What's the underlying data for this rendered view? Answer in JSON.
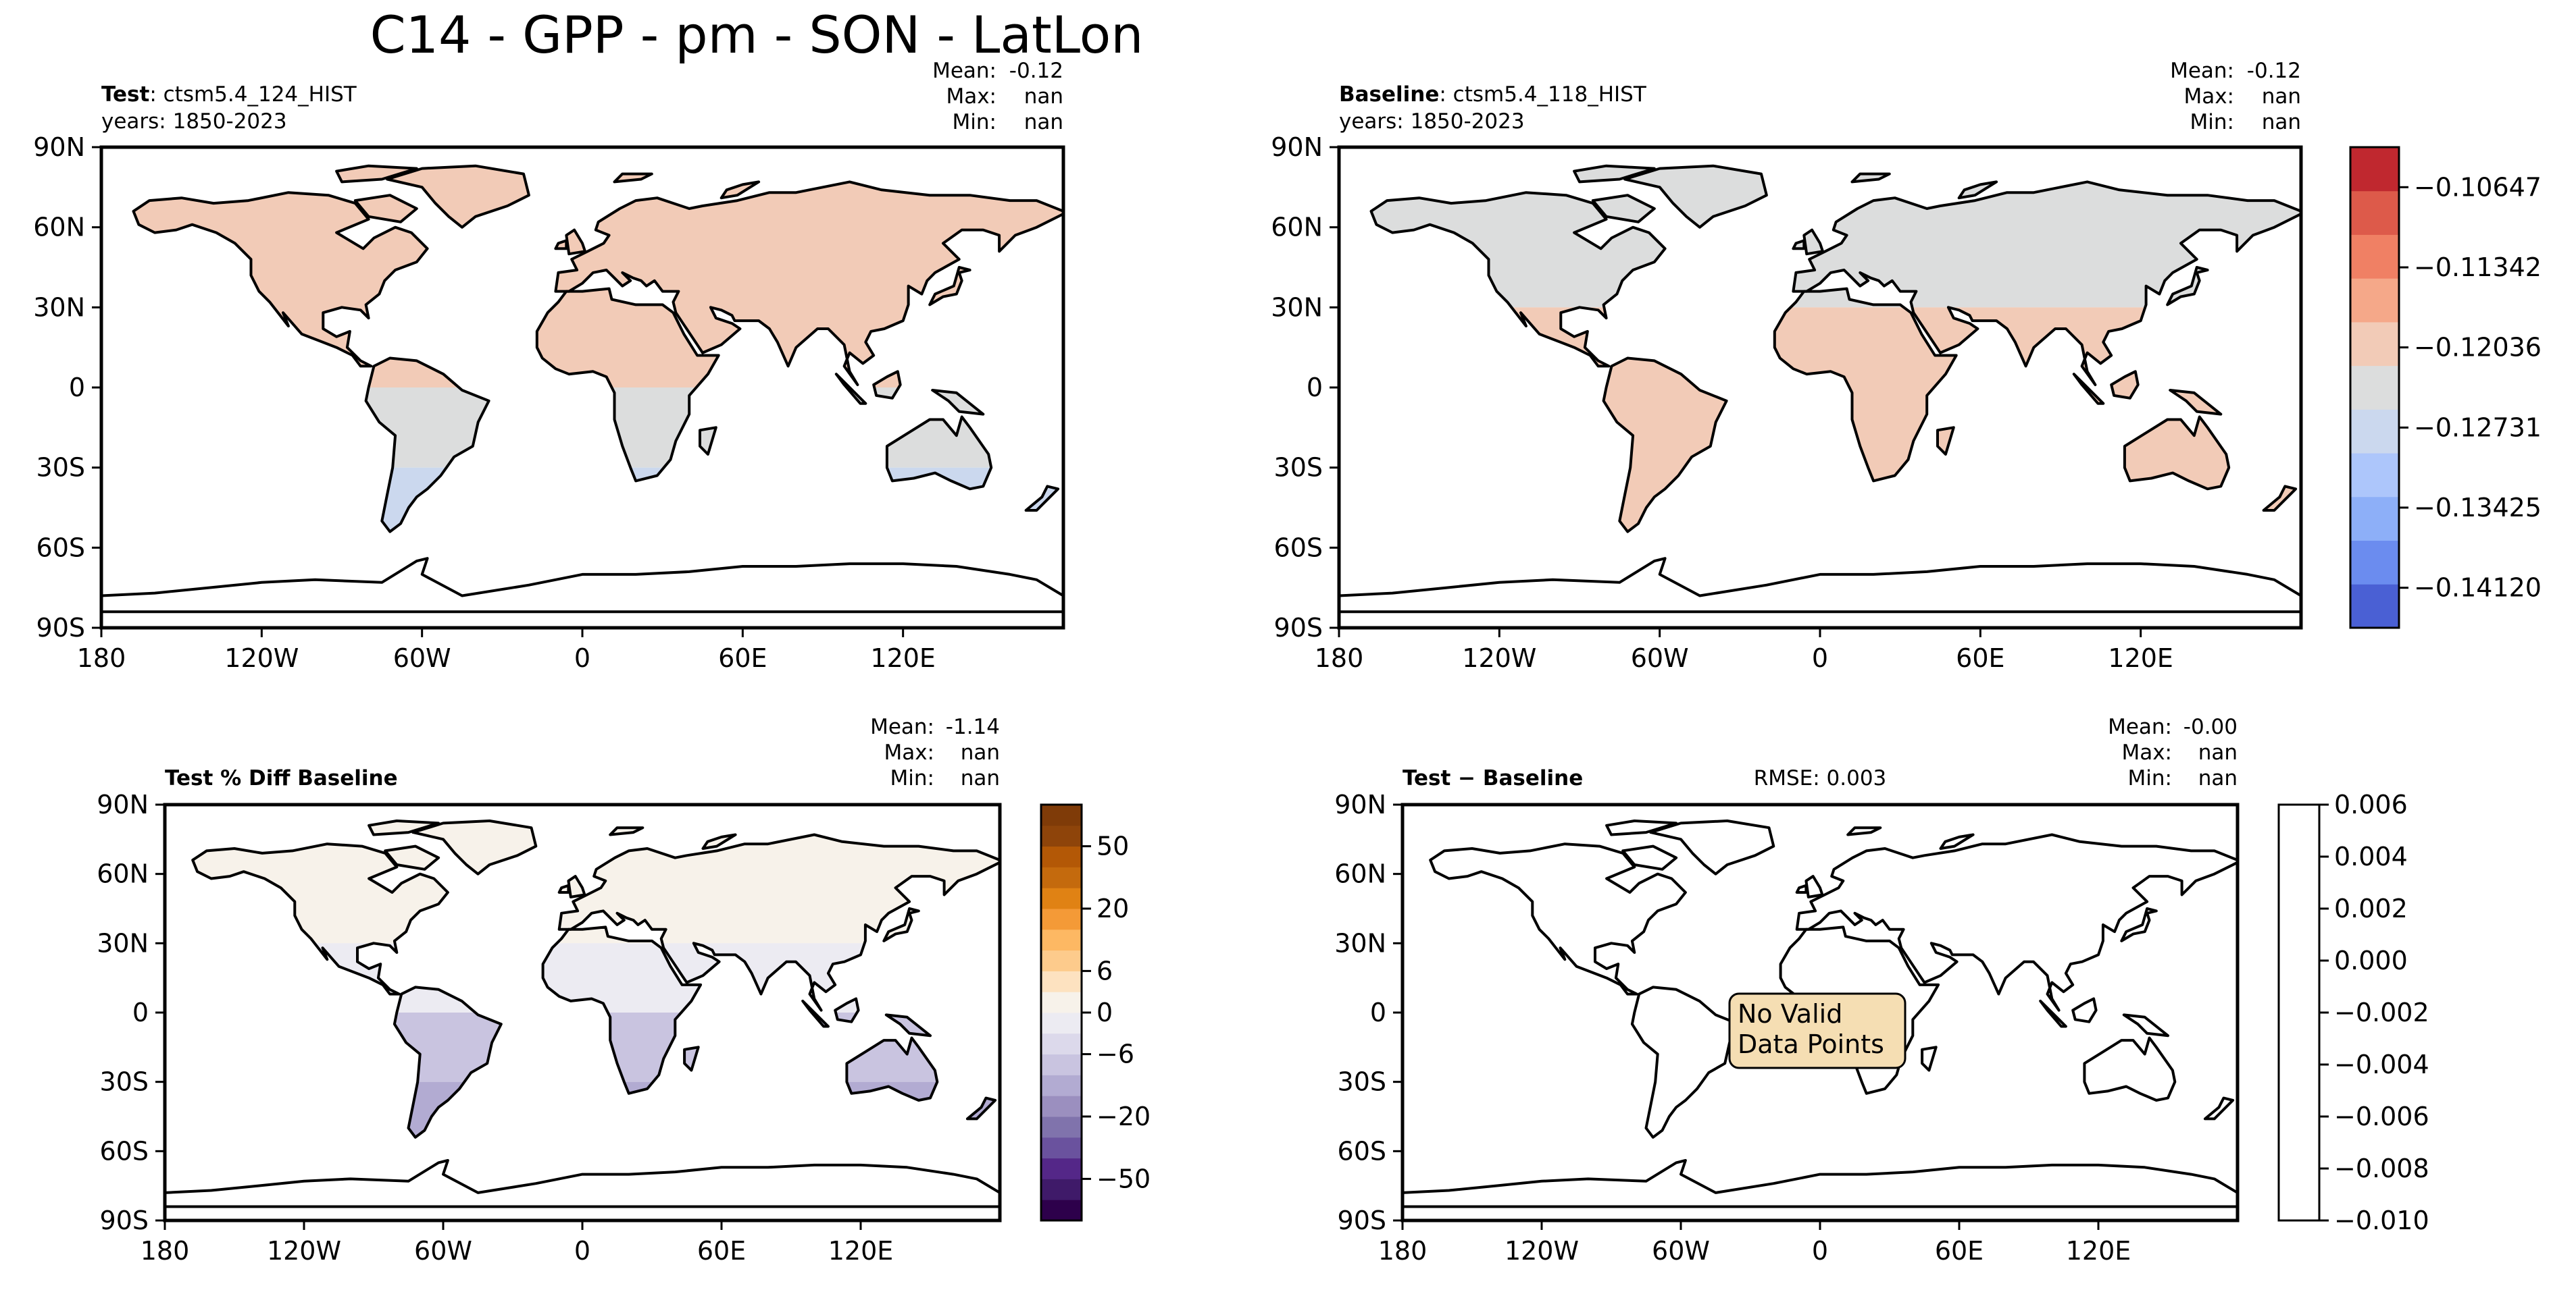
{
  "figure": {
    "suptitle": "C14 - GPP - pm - SON - LatLon"
  },
  "colors": {
    "land_outline": "#000000",
    "no_data_box": "#f5deb3",
    "coolwarm": [
      "#4a60d4",
      "#6b8cef",
      "#8daff8",
      "#adc6fb",
      "#cbd8ee",
      "#dcdddd",
      "#f2cbb7",
      "#f5a889",
      "#f08064",
      "#dd5a4a",
      "#c0282f"
    ],
    "puor": [
      "#2d004b",
      "#3f1a69",
      "#542788",
      "#6a529e",
      "#8073ac",
      "#9b8fbf",
      "#b2abd2",
      "#c9c4e0",
      "#dcd9eb",
      "#ecebf2",
      "#f7f2ea",
      "#fde2c0",
      "#fdcb8c",
      "#fdb863",
      "#f49a37",
      "#e08214",
      "#c46a0d",
      "#b35806",
      "#8e440a",
      "#7f3b08"
    ]
  },
  "panels": {
    "test": {
      "label_bold": "Test",
      "label_rest": ": ctsm5.4_124_HIST",
      "years": "years: 1850-2023",
      "stats": {
        "mean_label": "Mean:",
        "mean": "-0.12",
        "max_label": "Max:",
        "max": "nan",
        "min_label": "Min:",
        "min": "nan"
      }
    },
    "baseline": {
      "label_bold": "Baseline",
      "label_rest": ": ctsm5.4_118_HIST",
      "years": "years: 1850-2023",
      "stats": {
        "mean_label": "Mean:",
        "mean": "-0.12",
        "max_label": "Max:",
        "max": "nan",
        "min_label": "Min:",
        "min": "nan"
      }
    },
    "pctdiff": {
      "label_bold": "Test % Diff Baseline",
      "stats": {
        "mean_label": "Mean:",
        "mean": "-1.14",
        "max_label": "Max:",
        "max": "nan",
        "min_label": "Min:",
        "min": "nan"
      }
    },
    "diff": {
      "label_bold": "Test − Baseline",
      "rmse": "RMSE: 0.003",
      "stats": {
        "mean_label": "Mean:",
        "mean": "-0.00",
        "max_label": "Max:",
        "max": "nan",
        "min_label": "Min:",
        "min": "nan"
      },
      "no_data_lines": [
        "No Valid",
        "Data Points"
      ]
    }
  },
  "chart_data": [
    {
      "type": "heatmap",
      "panel": "test",
      "xlim": [
        -180,
        180
      ],
      "ylim": [
        -90,
        90
      ],
      "xticks": [
        "180",
        "120W",
        "60W",
        "0",
        "60E",
        "120E"
      ],
      "yticks": [
        "90N",
        "60N",
        "30N",
        "0",
        "30S",
        "60S",
        "90S"
      ],
      "bands": [
        {
          "lat": [
            0,
            90
          ],
          "value": -0.1235,
          "color_index": 6
        },
        {
          "lat": [
            -30,
            0
          ],
          "value": -0.1265,
          "color_index": 5
        },
        {
          "lat": [
            -60,
            -30
          ],
          "value": -0.13,
          "color_index": 4
        }
      ]
    },
    {
      "type": "heatmap",
      "panel": "baseline",
      "xlim": [
        -180,
        180
      ],
      "ylim": [
        -90,
        90
      ],
      "xticks": [
        "180",
        "120W",
        "60W",
        "0",
        "60E",
        "120E"
      ],
      "yticks": [
        "90N",
        "60N",
        "30N",
        "0",
        "30S",
        "60S",
        "90S"
      ],
      "bands": [
        {
          "lat": [
            30,
            90
          ],
          "value": -0.1265,
          "color_index": 5
        },
        {
          "lat": [
            -60,
            30
          ],
          "value": -0.1235,
          "color_index": 6
        }
      ]
    },
    {
      "type": "heatmap",
      "panel": "pctdiff",
      "xlim": [
        -180,
        180
      ],
      "ylim": [
        -90,
        90
      ],
      "xticks": [
        "180",
        "120W",
        "60W",
        "0",
        "60E",
        "120E"
      ],
      "yticks": [
        "90N",
        "60N",
        "30N",
        "0",
        "30S",
        "60S",
        "90S"
      ],
      "bands": [
        {
          "lat": [
            30,
            90
          ],
          "value": 1,
          "color_index": 10
        },
        {
          "lat": [
            0,
            30
          ],
          "value": -1,
          "color_index": 9
        },
        {
          "lat": [
            -30,
            0
          ],
          "value": -5,
          "color_index": 7
        },
        {
          "lat": [
            -60,
            -30
          ],
          "value": -9,
          "color_index": 6
        }
      ]
    },
    {
      "type": "heatmap",
      "panel": "diff",
      "xlim": [
        -180,
        180
      ],
      "ylim": [
        -90,
        90
      ],
      "xticks": [
        "180",
        "120W",
        "60W",
        "0",
        "60E",
        "120E"
      ],
      "yticks": [
        "90N",
        "60N",
        "30N",
        "0",
        "30S",
        "60S",
        "90S"
      ],
      "bands": []
    }
  ],
  "colorbars": {
    "coolwarm": {
      "range": [
        -0.14467,
        -0.103
      ],
      "tick_values": [
        -0.10647,
        -0.11342,
        -0.12036,
        -0.12731,
        -0.13425,
        -0.1412
      ],
      "tick_labels": [
        "−0.10647",
        "−0.11342",
        "−0.12036",
        "−0.12731",
        "−0.13425",
        "−0.14120"
      ]
    },
    "pctdiff": {
      "tick_labels": [
        "50",
        "20",
        "6",
        "0",
        "−6",
        "−20",
        "−50"
      ],
      "tick_level_index": [
        18,
        15,
        12,
        10,
        8,
        5,
        2
      ]
    },
    "diff": {
      "range": [
        -0.01,
        0.006
      ],
      "tick_values": [
        0.006,
        0.004,
        0.002,
        0.0,
        -0.002,
        -0.004,
        -0.006,
        -0.008,
        -0.01
      ],
      "tick_labels": [
        "0.006",
        "0.004",
        "0.002",
        "0.000",
        "−0.002",
        "−0.004",
        "−0.006",
        "−0.008",
        "−0.010"
      ]
    }
  }
}
